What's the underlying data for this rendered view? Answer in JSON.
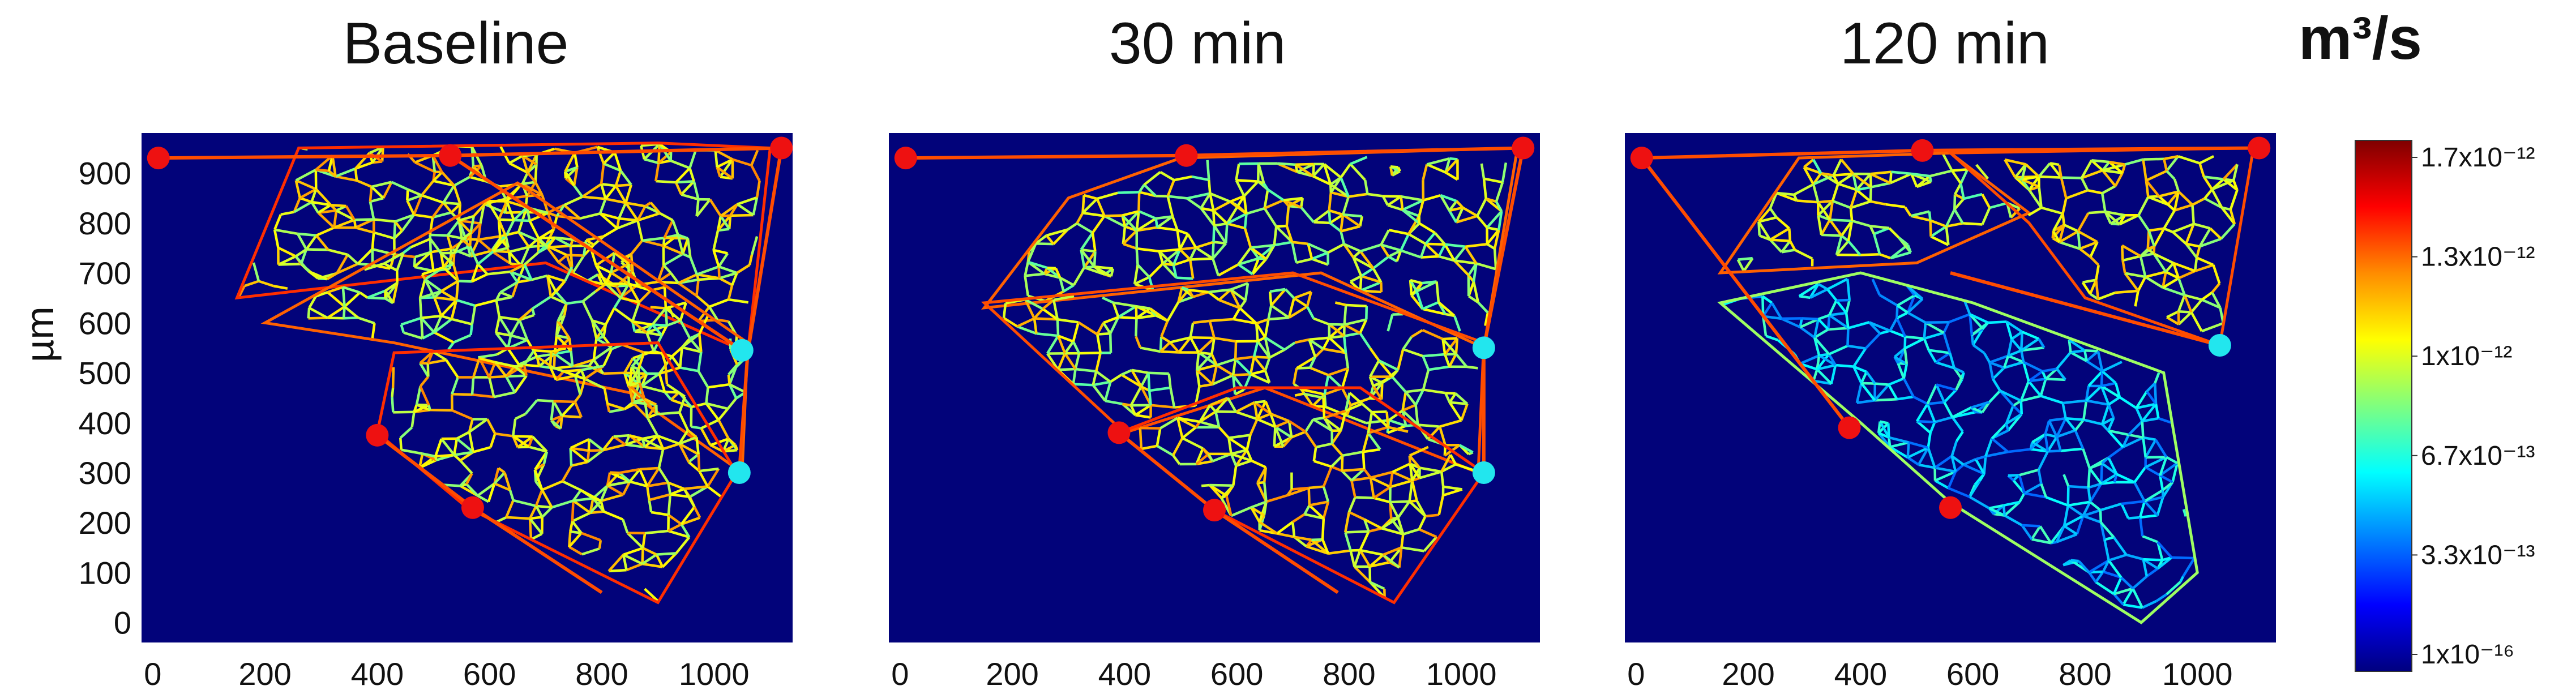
{
  "unit_label": "m³/s",
  "chart_data": [
    {
      "type": "heatmap",
      "title": "Baseline",
      "ylabel": "µm",
      "xlim": [
        -20,
        1140
      ],
      "ylim": [
        -40,
        980
      ],
      "x_ticks": [
        "0",
        "200",
        "400",
        "600",
        "800",
        "1000"
      ],
      "y_ticks": [
        "0",
        "100",
        "200",
        "300",
        "400",
        "500",
        "600",
        "700",
        "800",
        "900"
      ],
      "inlets": [
        [
          10,
          930
        ],
        [
          530,
          935
        ],
        [
          1120,
          950
        ],
        [
          400,
          375
        ],
        [
          570,
          230
        ]
      ],
      "outlets": [
        [
          1050,
          545
        ],
        [
          1045,
          300
        ]
      ]
    },
    {
      "type": "heatmap",
      "title": "30 min",
      "xlim": [
        -20,
        1140
      ],
      "ylim": [
        -40,
        980
      ],
      "x_ticks": [
        "0",
        "200",
        "400",
        "600",
        "800",
        "1000"
      ],
      "inlets": [
        [
          10,
          930
        ],
        [
          510,
          935
        ],
        [
          1110,
          950
        ],
        [
          390,
          380
        ],
        [
          560,
          225
        ]
      ],
      "outlets": [
        [
          1040,
          550
        ],
        [
          1040,
          300
        ]
      ]
    },
    {
      "type": "heatmap",
      "title": "120 min",
      "xlim": [
        -20,
        1140
      ],
      "ylim": [
        -40,
        980
      ],
      "x_ticks": [
        "0",
        "200",
        "400",
        "600",
        "800",
        "1000"
      ],
      "inlets": [
        [
          10,
          930
        ],
        [
          510,
          945
        ],
        [
          1110,
          950
        ],
        [
          380,
          390
        ],
        [
          560,
          230
        ]
      ],
      "outlets": [
        [
          1040,
          555
        ]
      ]
    }
  ],
  "colorbar": {
    "ticks": [
      "1.7x10⁻¹²",
      "1.3x10⁻¹²",
      "1x10⁻¹²",
      "6.7x10⁻¹³",
      "3.3x10⁻¹³",
      "1x10⁻¹⁶"
    ],
    "colors": [
      "#7f0000",
      "#ff0000",
      "#ff8c00",
      "#ffff00",
      "#7fff7f",
      "#00ffff",
      "#0080ff",
      "#0000ff",
      "#00007f"
    ]
  }
}
